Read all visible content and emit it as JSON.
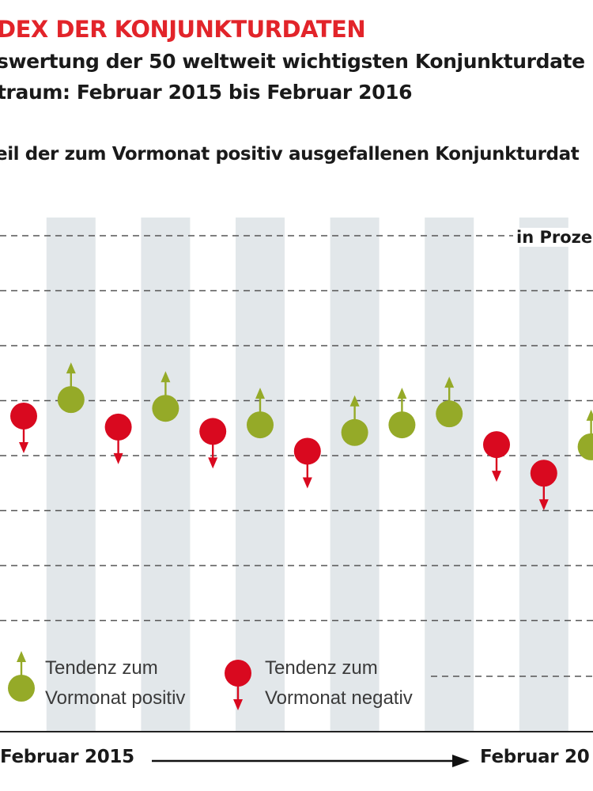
{
  "header": {
    "title": "DEX DER KONJUNKTURDATEN",
    "subtitle_1": "swertung der 50 weltweit wichtigsten Konjunkturdate",
    "subtitle_2": "traum: Februar 2015 bis Februar 2016",
    "share_label": "eil der zum Vormonat positiv ausgefallenen Konjunkturdat",
    "unit_label": "in Proze"
  },
  "legend": {
    "positive": {
      "line1": "Tendenz zum",
      "line2": "Vormonat positiv",
      "color": "#95aa28"
    },
    "negative": {
      "line1": "Tendenz zum",
      "line2": "Vormonat negativ",
      "color": "#d9091f"
    }
  },
  "axis": {
    "start_label": "Februar 2015",
    "end_label": "Februar 20"
  },
  "colors": {
    "positive": "#95aa28",
    "negative": "#d9091f",
    "band": "#e2e7ea",
    "grid": "#555555"
  },
  "chart_data": {
    "type": "scatter",
    "title": "",
    "grid": true,
    "ylim": [
      30,
      75
    ],
    "gridlines": [
      75,
      70,
      65,
      60,
      55,
      50,
      45,
      40
    ],
    "series": [
      {
        "name": "Tendenz zum Vormonat positiv",
        "points": [
          {
            "x": 2,
            "y": 60.1
          },
          {
            "x": 4,
            "y": 59.3
          },
          {
            "x": 6,
            "y": 57.8
          },
          {
            "x": 8,
            "y": 57.1
          },
          {
            "x": 9,
            "y": 57.8
          },
          {
            "x": 10,
            "y": 58.8
          },
          {
            "x": 13,
            "y": 55.8
          }
        ]
      },
      {
        "name": "Tendenz zum Vormonat negativ",
        "points": [
          {
            "x": 1,
            "y": 58.6
          },
          {
            "x": 3,
            "y": 57.6
          },
          {
            "x": 5,
            "y": 57.2
          },
          {
            "x": 7,
            "y": 55.4
          },
          {
            "x": 11,
            "y": 56.0
          },
          {
            "x": 12,
            "y": 53.4
          }
        ]
      }
    ]
  }
}
